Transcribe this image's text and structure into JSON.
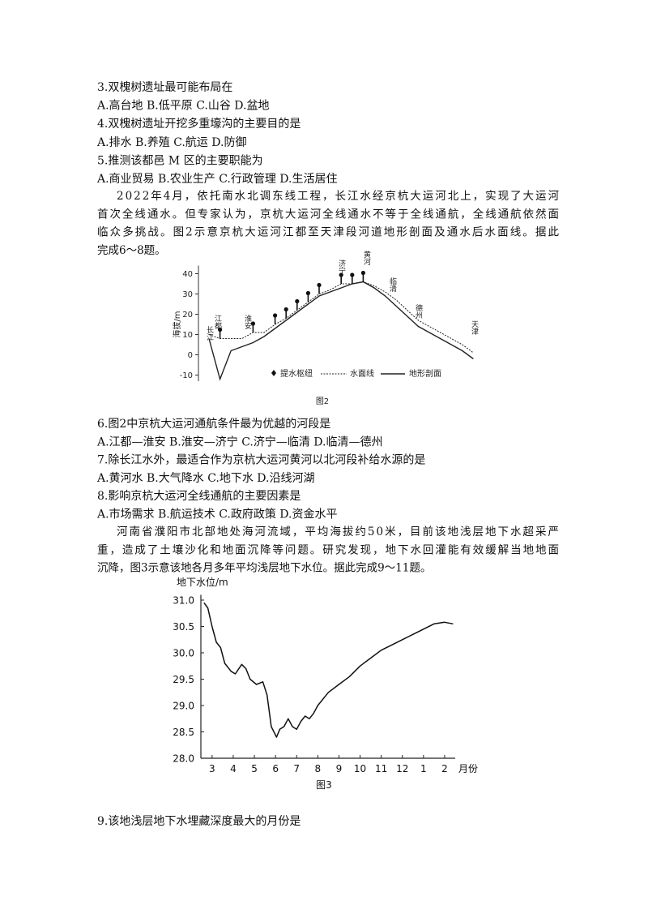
{
  "questions_a": [
    "3.双槐树遗址最可能布局在",
    "A.高台地 B.低平原 C.山谷 D.盆地",
    "4.双槐树遗址开挖多重壕沟的主要目的是",
    "A.排水 B.养殖 C.航运 D.防御",
    "5.推测该都邑 M 区的主要职能为",
    "A.商业贸易 B.农业生产 C.行政管理 D.生活居住"
  ],
  "paragraph_1": [
    "2022年4月，依托南水北调东线工程，长江水经京杭大运河北上，实现了大运河",
    "首次全线通水。但专家认为，京杭大运河全线通水不等于全线通航，全线通航依然面",
    "临众多挑战。图2示意京杭大运河江都至天津段河道地形剖面及通水后水面线。据此",
    "完成6～8题。"
  ],
  "figure_2": {
    "y_label": "海拔/m",
    "place_labels": [
      "长江",
      "江都",
      "淮安",
      "济宁",
      "黄河",
      "临清",
      "德州",
      "天津"
    ],
    "pump_legend": "提水枢纽",
    "caption": "图2",
    "ylim": [
      -13,
      44
    ],
    "yticks": [
      -10,
      0,
      10,
      20,
      30,
      40
    ],
    "series": [
      {
        "name": "水面线",
        "values": [
          10,
          8,
          8,
          8,
          11,
          11,
          15,
          18,
          22,
          26,
          30,
          32,
          35,
          35,
          36,
          34,
          31,
          27,
          22,
          17,
          14,
          11,
          8,
          5,
          1
        ]
      },
      {
        "name": "地形剖面",
        "values": [
          8,
          -12,
          2,
          4,
          6,
          9,
          13,
          17,
          21,
          25,
          29,
          31,
          33,
          35,
          36,
          33,
          29,
          24,
          19,
          14,
          11,
          8,
          5,
          2,
          -2
        ]
      }
    ]
  },
  "questions_b": [
    "6.图2中京杭大运河通航条件最为优越的河段是",
    "A.江都—淮安 B.淮安—济宁 C.济宁—临清 D.临清—德州",
    "7.除长江水外，最适合作为京杭大运河黄河以北河段补给水源的是",
    "A.黄河水 B.大气降水 C.地下水 D.沿线河湖",
    "8.影响京杭大运河全线通航的主要因素是",
    "A.市场需求 B.航运技术 C.政府政策 D.资金水平"
  ],
  "paragraph_2": [
    "河南省濮阳市北部地处海河流域，平均海拔约50米，目前该地浅层地下水超采严",
    "重，造成了土壤沙化和地面沉降等问题。研究发现，地下水回灌能有效缓解当地地面",
    "沉降，图3示意该地各月多年平均浅层地下水位。据此完成9～11题。"
  ],
  "figure_3": {
    "type": "line",
    "y_label": "地下水位/m",
    "x_label": "月份",
    "caption": "图3",
    "xlim": [
      -0.53,
      11.5
    ],
    "ylim": [
      28,
      31.1
    ],
    "xticks": [
      {
        "value": 0,
        "label": "3"
      },
      {
        "value": 1,
        "label": "4"
      },
      {
        "value": 2,
        "label": "5"
      },
      {
        "value": 3,
        "label": "6"
      },
      {
        "value": 4,
        "label": "7"
      },
      {
        "value": 5,
        "label": "8"
      },
      {
        "value": 6,
        "label": "9"
      },
      {
        "value": 7,
        "label": "10"
      },
      {
        "value": 8,
        "label": "11"
      },
      {
        "value": 9,
        "label": "12"
      },
      {
        "value": 10,
        "label": "1"
      },
      {
        "value": 11,
        "label": "2"
      }
    ],
    "yticks": [
      {
        "value": 31,
        "label": "31.0"
      },
      30.5,
      {
        "value": 30,
        "label": "30.0"
      },
      29.5,
      {
        "value": 29,
        "label": "29.0"
      },
      28.5,
      {
        "value": 28,
        "label": "28.0"
      }
    ],
    "x": [
      -0.38,
      -0.2,
      0,
      0.2,
      0.4,
      0.6,
      0.9,
      1.1,
      1.4,
      1.6,
      1.8,
      2.1,
      2.4,
      2.6,
      2.8,
      3.05,
      3.2,
      3.4,
      3.6,
      3.8,
      4.0,
      4.2,
      4.4,
      4.6,
      4.8,
      5.0,
      5.5,
      6.0,
      6.5,
      7.0,
      7.5,
      8.0,
      8.5,
      9.0,
      9.5,
      10.0,
      10.5,
      11.0,
      11.4
    ],
    "values": [
      30.95,
      30.85,
      30.5,
      30.2,
      30.1,
      29.8,
      29.65,
      29.6,
      29.78,
      29.7,
      29.5,
      29.4,
      29.45,
      29.2,
      28.6,
      28.4,
      28.55,
      28.6,
      28.75,
      28.6,
      28.55,
      28.7,
      28.8,
      28.75,
      28.85,
      29.0,
      29.25,
      29.4,
      29.55,
      29.75,
      29.9,
      30.05,
      30.15,
      30.25,
      30.35,
      30.45,
      30.55,
      30.58,
      30.55
    ]
  },
  "question_9": "9.该地浅层地下水埋藏深度最大的月份是"
}
